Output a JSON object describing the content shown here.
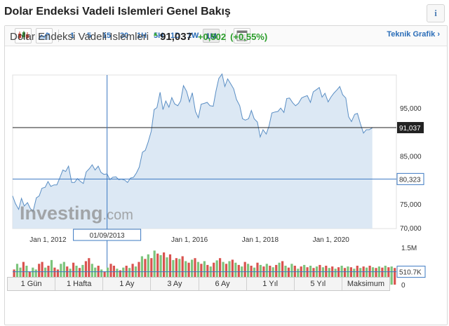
{
  "page": {
    "title": "Dolar Endeksi Vadeli Islemleri Genel Bakış",
    "info_label": "i"
  },
  "toolbar": {
    "intervals": [
      "1",
      "5",
      "15",
      "30",
      "1H",
      "5H",
      "1D",
      "1W",
      "1M"
    ],
    "active_interval": "1M",
    "icons": [
      "candlestick-icon",
      "area-chart-icon",
      "calendar-icon"
    ],
    "tech_link": "Teknik Grafik"
  },
  "quote": {
    "name": "Dolar Endeksi Vadeli Islemleri",
    "arrow": "▲",
    "price": "91,037",
    "change": "+0,502",
    "change_pct": "(+0,55%)",
    "colors": {
      "up": "#2a9d2a",
      "line": "#5a8ec4",
      "fill": "#d6e4f2"
    }
  },
  "watermark": {
    "brand": "Investing",
    "suffix": ".com"
  },
  "chart_data": {
    "type": "area",
    "x_labels": [
      "Jan 1, 2012",
      "Jan 1, 2016",
      "Jan 1, 2018",
      "Jan 1, 2020"
    ],
    "y_ticks": [
      "95,000",
      "85,000",
      "75,000",
      "70,000"
    ],
    "y_tick_values": [
      95,
      85,
      75,
      70
    ],
    "ylim": [
      70,
      102
    ],
    "x_range": [
      2011.0,
      2021.85
    ],
    "last_price_label": "91,037",
    "last_price": 91.037,
    "crosshair_price_label": "80,323",
    "crosshair_price": 80.323,
    "crosshair_date_label": "01/09/2013",
    "crosshair_date": 2013.67,
    "series": [
      {
        "x": [
          2011.0,
          2011.08,
          2011.17,
          2011.25,
          2011.33,
          2011.42,
          2011.5,
          2011.58,
          2011.67,
          2011.75,
          2011.83,
          2011.92,
          2012.0,
          2012.08,
          2012.17,
          2012.25,
          2012.33,
          2012.42,
          2012.5,
          2012.58,
          2012.67,
          2012.75,
          2012.83,
          2012.92,
          2013.0,
          2013.08,
          2013.17,
          2013.25,
          2013.33,
          2013.42,
          2013.5,
          2013.58,
          2013.67,
          2013.75,
          2013.83,
          2013.92,
          2014.0,
          2014.08,
          2014.17,
          2014.25,
          2014.33,
          2014.42,
          2014.5,
          2014.58,
          2014.67,
          2014.75,
          2014.83,
          2014.92,
          2015.0,
          2015.08,
          2015.17,
          2015.25,
          2015.33,
          2015.42,
          2015.5,
          2015.58,
          2015.67,
          2015.75,
          2015.83,
          2015.92,
          2016.0,
          2016.08,
          2016.17,
          2016.25,
          2016.33,
          2016.42,
          2016.5,
          2016.58,
          2016.67,
          2016.75,
          2016.83,
          2016.92,
          2017.0,
          2017.08,
          2017.17,
          2017.25,
          2017.33,
          2017.42,
          2017.5,
          2017.58,
          2017.67,
          2017.75,
          2017.83,
          2017.92,
          2018.0,
          2018.08,
          2018.17,
          2018.25,
          2018.33,
          2018.42,
          2018.5,
          2018.58,
          2018.67,
          2018.75,
          2018.83,
          2018.92,
          2019.0,
          2019.08,
          2019.17,
          2019.25,
          2019.33,
          2019.42,
          2019.5,
          2019.58,
          2019.67,
          2019.75,
          2019.83,
          2019.92,
          2020.0,
          2020.08,
          2020.17,
          2020.25,
          2020.33,
          2020.42,
          2020.5,
          2020.58,
          2020.67,
          2020.75,
          2020.83,
          2020.92,
          2021.0,
          2021.08,
          2021.17
        ],
        "y": [
          76.8,
          75.2,
          74.0,
          76.3,
          74.7,
          75.4,
          74.2,
          73.6,
          76.4,
          76.8,
          78.4,
          78.6,
          79.8,
          78.8,
          79.1,
          79.1,
          80.5,
          82.2,
          81.9,
          83.0,
          79.6,
          79.6,
          80.4,
          79.8,
          79.4,
          81.8,
          82.5,
          83.3,
          82.2,
          83.0,
          81.7,
          81.3,
          81.4,
          80.2,
          80.7,
          80.8,
          80.2,
          80.3,
          80.1,
          79.6,
          80.5,
          80.7,
          81.6,
          82.8,
          85.9,
          86.3,
          88.0,
          90.3,
          94.8,
          95.2,
          98.4,
          94.8,
          96.6,
          95.3,
          97.3,
          96.0,
          95.6,
          96.6,
          99.8,
          98.6,
          96.4,
          98.3,
          94.4,
          93.1,
          95.9,
          96.1,
          96.3,
          95.6,
          95.5,
          98.7,
          101.3,
          102.2,
          99.6,
          101.2,
          100.1,
          99.1,
          96.9,
          95.6,
          92.9,
          92.6,
          92.9,
          94.6,
          92.9,
          92.2,
          89.1,
          90.6,
          89.7,
          91.4,
          94.1,
          94.3,
          94.4,
          95.1,
          94.2,
          97.1,
          97.2,
          96.2,
          95.6,
          96.1,
          97.2,
          97.5,
          97.7,
          96.3,
          98.5,
          98.9,
          99.4,
          97.4,
          98.2,
          96.4,
          97.4,
          98.2,
          98.9,
          99.6,
          97.9,
          97.2,
          93.3,
          92.3,
          93.8,
          94.0,
          91.9,
          89.9,
          90.6,
          90.6,
          91.0
        ]
      }
    ]
  },
  "volume": {
    "axis_top": "1.5M",
    "axis_zero": "0",
    "marker_label": "510.7K",
    "bars": [
      {
        "v": 0.4,
        "up": false
      },
      {
        "v": 0.55,
        "up": true
      },
      {
        "v": 0.45,
        "up": true
      },
      {
        "v": 0.6,
        "up": false
      },
      {
        "v": 0.5,
        "up": true
      },
      {
        "v": 0.35,
        "up": false
      },
      {
        "v": 0.45,
        "up": true
      },
      {
        "v": 0.4,
        "up": true
      },
      {
        "v": 0.55,
        "up": false
      },
      {
        "v": 0.6,
        "up": false
      },
      {
        "v": 0.45,
        "up": true
      },
      {
        "v": 0.5,
        "up": false
      },
      {
        "v": 0.65,
        "up": true
      },
      {
        "v": 0.45,
        "up": false
      },
      {
        "v": 0.4,
        "up": false
      },
      {
        "v": 0.55,
        "up": true
      },
      {
        "v": 0.6,
        "up": true
      },
      {
        "v": 0.48,
        "up": false
      },
      {
        "v": 0.42,
        "up": true
      },
      {
        "v": 0.58,
        "up": false
      },
      {
        "v": 0.5,
        "up": true
      },
      {
        "v": 0.44,
        "up": false
      },
      {
        "v": 0.52,
        "up": true
      },
      {
        "v": 0.62,
        "up": false
      },
      {
        "v": 0.7,
        "up": false
      },
      {
        "v": 0.55,
        "up": true
      },
      {
        "v": 0.45,
        "up": true
      },
      {
        "v": 0.5,
        "up": false
      },
      {
        "v": 0.4,
        "up": true
      },
      {
        "v": 0.35,
        "up": false
      },
      {
        "v": 0.45,
        "up": true
      },
      {
        "v": 0.55,
        "up": false
      },
      {
        "v": 0.5,
        "up": false
      },
      {
        "v": 0.42,
        "up": true
      },
      {
        "v": 0.38,
        "up": false
      },
      {
        "v": 0.45,
        "up": true
      },
      {
        "v": 0.5,
        "up": false
      },
      {
        "v": 0.44,
        "up": true
      },
      {
        "v": 0.55,
        "up": false
      },
      {
        "v": 0.48,
        "up": true
      },
      {
        "v": 0.6,
        "up": false
      },
      {
        "v": 0.75,
        "up": true
      },
      {
        "v": 0.68,
        "up": false
      },
      {
        "v": 0.8,
        "up": true
      },
      {
        "v": 0.7,
        "up": false
      },
      {
        "v": 0.9,
        "up": true
      },
      {
        "v": 0.82,
        "up": false
      },
      {
        "v": 0.78,
        "up": true
      },
      {
        "v": 0.85,
        "up": false
      },
      {
        "v": 0.72,
        "up": true
      },
      {
        "v": 0.8,
        "up": false
      },
      {
        "v": 0.65,
        "up": true
      },
      {
        "v": 0.7,
        "up": false
      },
      {
        "v": 0.68,
        "up": true
      },
      {
        "v": 0.75,
        "up": false
      },
      {
        "v": 0.62,
        "up": true
      },
      {
        "v": 0.58,
        "up": false
      },
      {
        "v": 0.66,
        "up": true
      },
      {
        "v": 0.7,
        "up": false
      },
      {
        "v": 0.6,
        "up": true
      },
      {
        "v": 0.55,
        "up": false
      },
      {
        "v": 0.62,
        "up": true
      },
      {
        "v": 0.52,
        "up": false
      },
      {
        "v": 0.48,
        "up": true
      },
      {
        "v": 0.58,
        "up": false
      },
      {
        "v": 0.64,
        "up": true
      },
      {
        "v": 0.7,
        "up": false
      },
      {
        "v": 0.6,
        "up": true
      },
      {
        "v": 0.55,
        "up": false
      },
      {
        "v": 0.62,
        "up": true
      },
      {
        "v": 0.66,
        "up": false
      },
      {
        "v": 0.58,
        "up": true
      },
      {
        "v": 0.52,
        "up": false
      },
      {
        "v": 0.48,
        "up": true
      },
      {
        "v": 0.6,
        "up": false
      },
      {
        "v": 0.55,
        "up": true
      },
      {
        "v": 0.5,
        "up": false
      },
      {
        "v": 0.45,
        "up": true
      },
      {
        "v": 0.58,
        "up": false
      },
      {
        "v": 0.52,
        "up": true
      },
      {
        "v": 0.48,
        "up": false
      },
      {
        "v": 0.55,
        "up": true
      },
      {
        "v": 0.5,
        "up": false
      },
      {
        "v": 0.46,
        "up": true
      },
      {
        "v": 0.52,
        "up": false
      },
      {
        "v": 0.58,
        "up": true
      },
      {
        "v": 0.62,
        "up": false
      },
      {
        "v": 0.5,
        "up": true
      },
      {
        "v": 0.45,
        "up": false
      },
      {
        "v": 0.55,
        "up": true
      },
      {
        "v": 0.5,
        "up": false
      },
      {
        "v": 0.42,
        "up": true
      },
      {
        "v": 0.48,
        "up": false
      },
      {
        "v": 0.52,
        "up": true
      },
      {
        "v": 0.46,
        "up": false
      },
      {
        "v": 0.5,
        "up": true
      },
      {
        "v": 0.44,
        "up": false
      },
      {
        "v": 0.48,
        "up": true
      },
      {
        "v": 0.52,
        "up": false
      },
      {
        "v": 0.46,
        "up": true
      },
      {
        "v": 0.5,
        "up": false
      },
      {
        "v": 0.44,
        "up": true
      },
      {
        "v": 0.48,
        "up": false
      },
      {
        "v": 0.42,
        "up": true
      },
      {
        "v": 0.46,
        "up": false
      },
      {
        "v": 0.5,
        "up": true
      },
      {
        "v": 0.44,
        "up": false
      },
      {
        "v": 0.48,
        "up": true
      },
      {
        "v": 0.46,
        "up": false
      },
      {
        "v": 0.42,
        "up": true
      },
      {
        "v": 0.5,
        "up": false
      },
      {
        "v": 0.44,
        "up": true
      },
      {
        "v": 0.48,
        "up": false
      },
      {
        "v": 0.45,
        "up": true
      },
      {
        "v": 0.5,
        "up": false
      },
      {
        "v": 0.46,
        "up": true
      },
      {
        "v": 0.44,
        "up": false
      },
      {
        "v": 0.48,
        "up": true
      },
      {
        "v": 0.45,
        "up": false
      },
      {
        "v": 0.5,
        "up": true
      },
      {
        "v": 0.46,
        "up": false
      },
      {
        "v": 0.48,
        "up": true
      },
      {
        "v": 0.44,
        "up": false
      }
    ]
  },
  "ranges": [
    "1 Gün",
    "1 Hafta",
    "1 Ay",
    "3 Ay",
    "6 Ay",
    "1 Yıl",
    "5 Yıl",
    "Maksimum"
  ]
}
